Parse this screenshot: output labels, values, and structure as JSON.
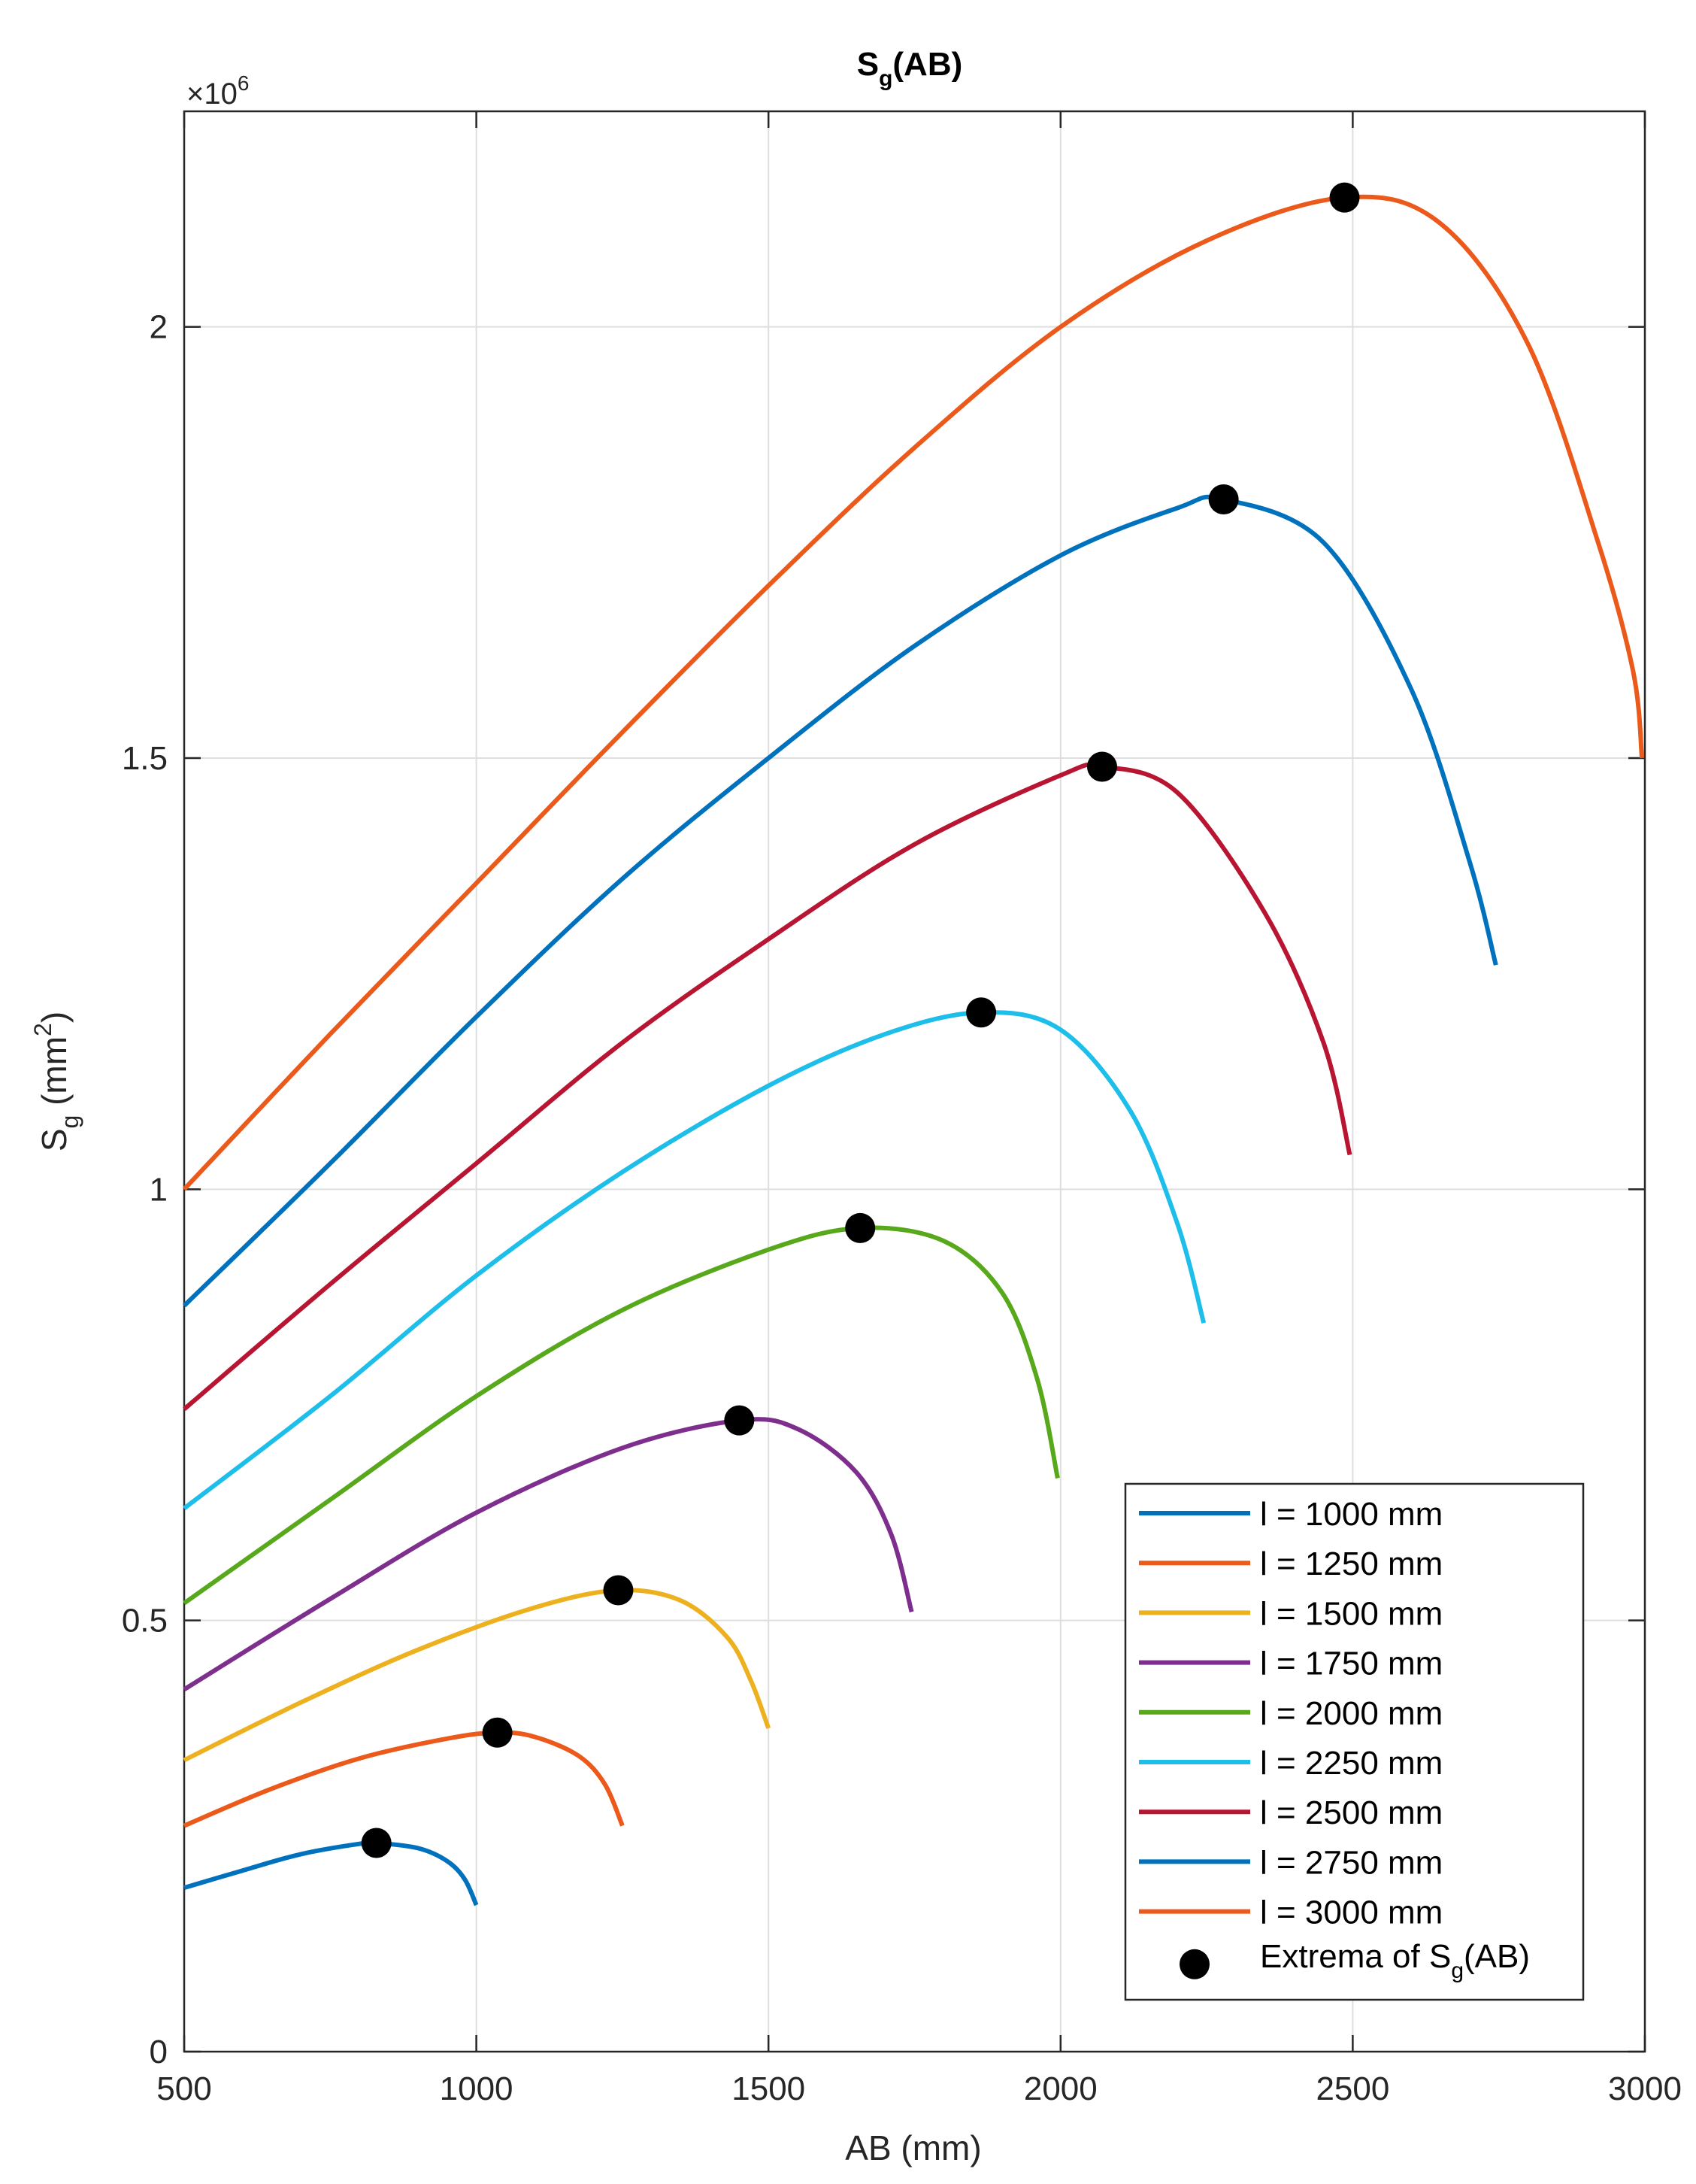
{
  "chart_data": {
    "type": "line",
    "title_main": "S",
    "title_sub": "g",
    "title_rest": "(AB)",
    "xlabel": "AB (mm)",
    "ylabel_main": "S",
    "ylabel_sub": "g",
    "ylabel_unit_open": " (mm",
    "ylabel_unit_sup": "2",
    "ylabel_unit_close": ")",
    "multiplier_prefix": "×10",
    "multiplier_exp": "6",
    "xlim": [
      500,
      3000
    ],
    "ylim": [
      0,
      2.25
    ],
    "xticks": [
      500,
      1000,
      1500,
      2000,
      2500,
      3000
    ],
    "xtick_labels": [
      "500",
      "1000",
      "1500",
      "2000",
      "2500",
      "3000"
    ],
    "yticks": [
      0,
      0.5,
      1,
      1.5,
      2
    ],
    "ytick_labels": [
      "0",
      "0.5",
      "1",
      "1.5",
      "2"
    ],
    "grid": true,
    "legend_position": "bottom-right",
    "series": [
      {
        "name": "l = 1000 mm",
        "color": "#0072BD",
        "x": [
          500,
          600,
          700,
          800,
          829,
          900,
          950,
          980,
          1000
        ],
        "y": [
          0.19,
          0.21,
          0.229,
          0.241,
          0.242,
          0.236,
          0.221,
          0.2,
          0.17
        ]
      },
      {
        "name": "l = 1250 mm",
        "color": "#EB5A1A",
        "x": [
          500,
          650,
          800,
          950,
          1036,
          1100,
          1175,
          1220,
          1250
        ],
        "y": [
          0.262,
          0.305,
          0.34,
          0.363,
          0.37,
          0.365,
          0.343,
          0.31,
          0.262
        ]
      },
      {
        "name": "l = 1500 mm",
        "color": "#EDB120",
        "x": [
          500,
          700,
          900,
          1100,
          1243,
          1350,
          1430,
          1470,
          1500
        ],
        "y": [
          0.338,
          0.405,
          0.466,
          0.515,
          0.535,
          0.523,
          0.48,
          0.43,
          0.375
        ]
      },
      {
        "name": "l = 1750 mm",
        "color": "#7E2F8E",
        "x": [
          500,
          750,
          1000,
          1250,
          1450,
          1550,
          1650,
          1710,
          1745
        ],
        "y": [
          0.42,
          0.525,
          0.625,
          0.7,
          0.732,
          0.722,
          0.672,
          0.6,
          0.51
        ]
      },
      {
        "name": "l = 2000 mm",
        "color": "#58A81B",
        "x": [
          500,
          750,
          1000,
          1250,
          1500,
          1657,
          1800,
          1900,
          1960,
          1995
        ],
        "y": [
          0.52,
          0.64,
          0.76,
          0.86,
          0.93,
          0.955,
          0.94,
          0.88,
          0.78,
          0.665
        ]
      },
      {
        "name": "l = 2250 mm",
        "color": "#1EBEEA",
        "x": [
          500,
          750,
          1000,
          1250,
          1500,
          1700,
          1864,
          2000,
          2120,
          2200,
          2245
        ],
        "y": [
          0.63,
          0.76,
          0.9,
          1.02,
          1.12,
          1.18,
          1.205,
          1.185,
          1.09,
          0.96,
          0.845
        ]
      },
      {
        "name": "l = 2500 mm",
        "color": "#B81532",
        "x": [
          500,
          750,
          1000,
          1250,
          1500,
          1750,
          2000,
          2071,
          2200,
          2350,
          2450,
          2495
        ],
        "y": [
          0.745,
          0.89,
          1.03,
          1.17,
          1.29,
          1.4,
          1.48,
          1.49,
          1.46,
          1.32,
          1.17,
          1.04
        ]
      },
      {
        "name": "l = 2750 mm",
        "color": "#0072BD",
        "x": [
          500,
          750,
          1000,
          1250,
          1500,
          1750,
          2000,
          2200,
          2279,
          2450,
          2600,
          2700,
          2745
        ],
        "y": [
          0.865,
          1.03,
          1.2,
          1.36,
          1.5,
          1.63,
          1.735,
          1.79,
          1.8,
          1.75,
          1.58,
          1.38,
          1.26
        ]
      },
      {
        "name": "l = 3000 mm",
        "color": "#EB5A1A",
        "x": [
          500,
          750,
          1000,
          1250,
          1500,
          1750,
          2000,
          2250,
          2486,
          2650,
          2800,
          2920,
          2980,
          2995
        ],
        "y": [
          1.0,
          1.18,
          1.355,
          1.53,
          1.7,
          1.86,
          2.0,
          2.1,
          2.15,
          2.12,
          1.98,
          1.75,
          1.6,
          1.5
        ]
      }
    ],
    "extrema": {
      "name_main": "Extrema of S",
      "name_sub": "g",
      "name_rest": "(AB)",
      "x": [
        829,
        1036,
        1243,
        1450,
        1657,
        1864,
        2071,
        2279,
        2486
      ],
      "y": [
        0.242,
        0.37,
        0.535,
        0.732,
        0.955,
        1.205,
        1.49,
        1.8,
        2.15
      ]
    }
  }
}
